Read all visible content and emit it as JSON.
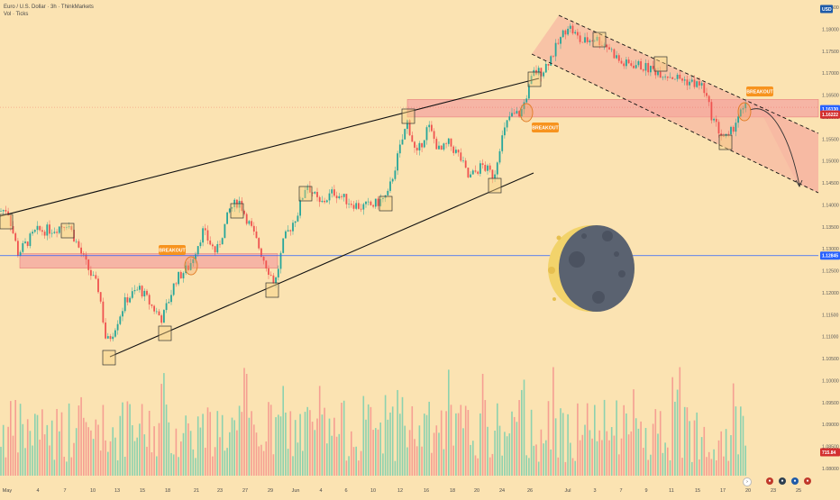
{
  "legend": {
    "symbol": "Euro / U.S. Dollar · 3h · ThinkMarkets",
    "volume": "Vol · Ticks"
  },
  "price_axis": {
    "ticks": [
      "1.18500",
      "1.18000",
      "1.17500",
      "1.17000",
      "1.16500",
      "1.16000",
      "1.15500",
      "1.15000",
      "1.14500",
      "1.14000",
      "1.13500",
      "1.13000",
      "1.12500",
      "1.12000",
      "1.11500",
      "1.11000",
      "1.10500",
      "1.10000",
      "1.09500",
      "1.09000",
      "1.08500",
      "1.08000"
    ],
    "tags": {
      "top_marker": "USD",
      "current_blue": "1.16130",
      "current_red": "1.16222",
      "blue_line": "1.12845",
      "volume": "715.84"
    }
  },
  "time_axis": {
    "labels": [
      "May",
      "4",
      "7",
      "10",
      "13",
      "15",
      "18",
      "21",
      "23",
      "27",
      "29",
      "Jun",
      "4",
      "6",
      "10",
      "12",
      "16",
      "18",
      "20",
      "24",
      "26",
      "Jul",
      "3",
      "7",
      "9",
      "11",
      "15",
      "17",
      "20",
      "23",
      "25"
    ]
  },
  "annotations": {
    "breakout_1": "BREAKOUT",
    "breakout_2": "BREAKOUT",
    "breakout_3": "BREAKOUT"
  },
  "colors": {
    "background": "#fbe3b2",
    "bull": "#26a69a",
    "bear": "#ef5350",
    "resistance_zone": "#f4a6a0",
    "blue_line": "#2962ff",
    "breakout_tag": "#f7931e"
  },
  "chart_data": {
    "type": "candlestick",
    "symbol": "EURUSD",
    "timeframe": "3h",
    "ylim": [
      1.08,
      1.188
    ],
    "price_path": [
      [
        "May 1",
        1.1385
      ],
      [
        "May 2",
        1.128
      ],
      [
        "May 5",
        1.134
      ],
      [
        "May 7",
        1.1355
      ],
      [
        "May 8",
        1.129
      ],
      [
        "May 9",
        1.118
      ],
      [
        "May 12",
        1.1075
      ],
      [
        "May 13",
        1.116
      ],
      [
        "May 15",
        1.1205
      ],
      [
        "May 16",
        1.115
      ],
      [
        "May 19",
        1.1255
      ],
      [
        "May 21",
        1.132
      ],
      [
        "May 22",
        1.1345
      ],
      [
        "May 23",
        1.133
      ],
      [
        "May 26",
        1.141
      ],
      [
        "May 27",
        1.134
      ],
      [
        "May 29",
        1.1225
      ],
      [
        "May 30",
        1.135
      ],
      [
        "Jun 3",
        1.144
      ],
      [
        "Jun 5",
        1.1395
      ],
      [
        "Jun 6",
        1.141
      ],
      [
        "Jun 9",
        1.142
      ],
      [
        "Jun 11",
        1.147
      ],
      [
        "Jun 12",
        1.159
      ],
      [
        "Jun 13",
        1.155
      ],
      [
        "Jun 16",
        1.1575
      ],
      [
        "Jun 17",
        1.15
      ],
      [
        "Jun 19",
        1.1475
      ],
      [
        "Jun 20",
        1.1515
      ],
      [
        "Jun 23",
        1.15
      ],
      [
        "Jun 24",
        1.159
      ],
      [
        "Jun 25",
        1.164
      ],
      [
        "Jun 26",
        1.171
      ],
      [
        "Jun 27",
        1.1705
      ],
      [
        "Jul 1",
        1.18
      ],
      [
        "Jul 2",
        1.178
      ],
      [
        "Jul 3",
        1.179
      ],
      [
        "Jul 4",
        1.176
      ],
      [
        "Jul 7",
        1.172
      ],
      [
        "Jul 9",
        1.171
      ],
      [
        "Jul 10",
        1.169
      ],
      [
        "Jul 11",
        1.168
      ],
      [
        "Jul 14",
        1.167
      ],
      [
        "Jul 15",
        1.1605
      ],
      [
        "Jul 16",
        1.156
      ],
      [
        "Jul 17",
        1.16
      ],
      [
        "Jul 18",
        1.1622
      ]
    ],
    "resistance_zones": [
      [
        1.1256,
        1.1289
      ],
      [
        1.16,
        1.164
      ]
    ],
    "horizontal_line": 1.12845,
    "current_price": 1.16222,
    "projection": "bearish after breakout"
  }
}
